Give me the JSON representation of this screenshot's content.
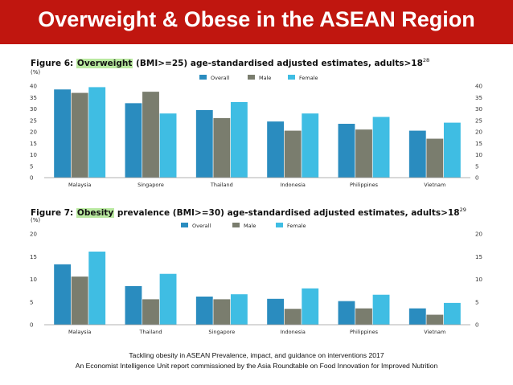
{
  "header": {
    "title": "Overweight & Obese in the ASEAN Region"
  },
  "colors": {
    "header_bg": "#c0160f",
    "Overall": "#2a8cbf",
    "Male": "#7a7d6e",
    "Female": "#3fbde3",
    "highlight": "#b9e9a0"
  },
  "figures": [
    {
      "title_prefix": "Figure 6: ",
      "title_highlight": "Overweight",
      "title_suffix": " (BMI>=25) age-standardised adjusted estimates, adults>18",
      "title_ref": "28",
      "unit": "(%)"
    },
    {
      "title_prefix": "Figure 7: ",
      "title_highlight": "Obesity",
      "title_suffix": " prevalence (BMI>=30) age-standardised adjusted estimates, adults>18",
      "title_ref": "29",
      "unit": "(%)"
    }
  ],
  "chart_data": [
    {
      "type": "bar",
      "title": "Overweight (BMI>=25) age-standardised adjusted estimates, adults>18",
      "ylabel": "(%)",
      "ylim": [
        0,
        40
      ],
      "yticks": [
        0,
        5,
        10,
        15,
        20,
        25,
        30,
        35,
        40
      ],
      "legend_position": "top-center",
      "categories": [
        "Malaysia",
        "Singapore",
        "Thailand",
        "Indonesia",
        "Philippines",
        "Vietnam"
      ],
      "series": [
        {
          "name": "Overall",
          "values": [
            38.5,
            32.5,
            29.5,
            24.5,
            23.5,
            20.5
          ]
        },
        {
          "name": "Male",
          "values": [
            37,
            37.5,
            26,
            20.5,
            21,
            17
          ]
        },
        {
          "name": "Female",
          "values": [
            39.5,
            28,
            33,
            28,
            26.5,
            24
          ]
        }
      ]
    },
    {
      "type": "bar",
      "title": "Obesity prevalence (BMI>=30) age-standardised adjusted estimates, adults>18",
      "ylabel": "(%)",
      "ylim": [
        0,
        20
      ],
      "yticks": [
        0,
        5,
        10,
        15,
        20
      ],
      "legend_position": "top-center",
      "categories": [
        "Malaysia",
        "Thailand",
        "Singapore",
        "Indonesia",
        "Philippines",
        "Vietnam"
      ],
      "series": [
        {
          "name": "Overall",
          "values": [
            13.3,
            8.5,
            6.2,
            5.7,
            5.2,
            3.6
          ]
        },
        {
          "name": "Male",
          "values": [
            10.6,
            5.6,
            5.6,
            3.5,
            3.6,
            2.2
          ]
        },
        {
          "name": "Female",
          "values": [
            16.1,
            11.2,
            6.7,
            8.0,
            6.6,
            4.8
          ]
        }
      ]
    }
  ],
  "footer": {
    "line1": "Tackling obesity in ASEAN Prevalence, impact, and guidance on interventions 2017",
    "line2": "An Economist Intelligence Unit report commissioned by the Asia Roundtable on Food Innovation for Improved Nutrition"
  }
}
